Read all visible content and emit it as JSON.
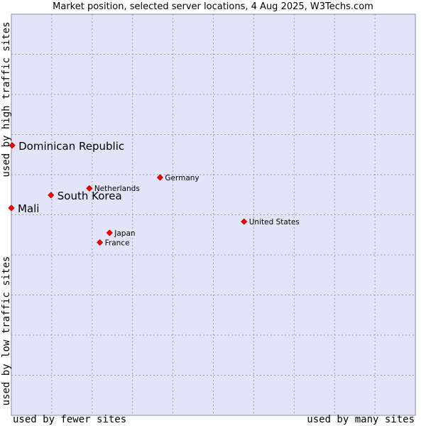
{
  "chart_data": {
    "type": "scatter",
    "title": "Market position, selected server locations, 4 Aug 2025, W3Techs.com",
    "ylabel_high": "used by high traffic sites",
    "ylabel_low": "used by low traffic sites",
    "xlabel_low": "used by fewer sites",
    "xlabel_high": "used by many sites",
    "xlim": [
      0,
      100
    ],
    "ylim": [
      0,
      100
    ],
    "grid": true,
    "colors": {
      "background": "#e4e4f8",
      "grid": "#9a9ab8",
      "marker": "#ff0000",
      "marker_edge": "#b00000"
    },
    "points": [
      {
        "name": "Dominican Republic",
        "x": 0.2,
        "y": 67.3,
        "highlight": true
      },
      {
        "name": "South Korea",
        "x": 9.8,
        "y": 54.9,
        "highlight": true
      },
      {
        "name": "Mali",
        "x": 0.0,
        "y": 51.7,
        "highlight": true
      },
      {
        "name": "Netherlands",
        "x": 19.3,
        "y": 56.6,
        "highlight": false
      },
      {
        "name": "Germany",
        "x": 36.8,
        "y": 59.3,
        "highlight": false
      },
      {
        "name": "United States",
        "x": 57.6,
        "y": 48.3,
        "highlight": false
      },
      {
        "name": "Japan",
        "x": 24.3,
        "y": 45.5,
        "highlight": false
      },
      {
        "name": "France",
        "x": 21.9,
        "y": 43.1,
        "highlight": false
      }
    ]
  }
}
